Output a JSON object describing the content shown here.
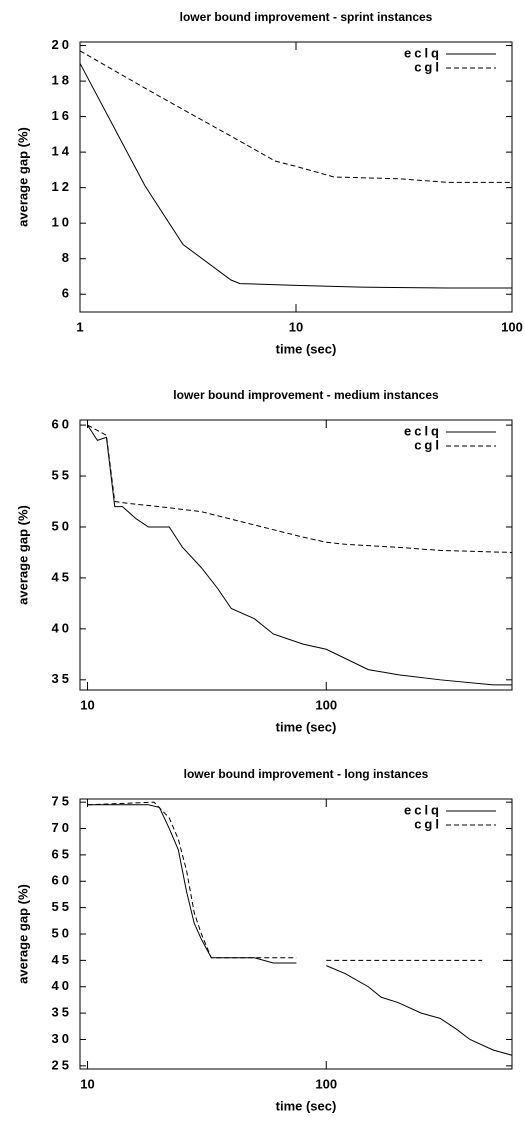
{
  "chart_data": [
    {
      "type": "line",
      "title": "lower bound improvement - sprint instances",
      "xlabel": "time (sec)",
      "ylabel": "average gap (%)",
      "xscale": "log",
      "xlim": [
        1,
        100
      ],
      "xticks": [
        1,
        10,
        100
      ],
      "ylim": [
        5,
        20.2
      ],
      "yticks": [
        6,
        8,
        10,
        12,
        14,
        16,
        18,
        20
      ],
      "legend": "upper right",
      "series": [
        {
          "name": "eclq",
          "color": "#000000",
          "dash": "solid",
          "x": [
            1,
            2,
            3,
            5,
            5.5,
            10,
            20,
            50,
            100
          ],
          "values": [
            19,
            12.1,
            8.8,
            6.8,
            6.6,
            6.5,
            6.4,
            6.35,
            6.35
          ]
        },
        {
          "name": "cgl",
          "color": "#000000",
          "dash": "dashed",
          "x": [
            1,
            2,
            3,
            5,
            8,
            10,
            15,
            30,
            50,
            100
          ],
          "values": [
            19.7,
            17.6,
            16.4,
            14.9,
            13.5,
            13.2,
            12.6,
            12.5,
            12.3,
            12.3
          ]
        }
      ]
    },
    {
      "type": "line",
      "title": "lower bound improvement - medium instances",
      "xlabel": "time (sec)",
      "ylabel": "average gap (%)",
      "xscale": "log",
      "xlim": [
        9.3,
        600
      ],
      "xticks": [
        10,
        100
      ],
      "ylim": [
        34,
        60.5
      ],
      "yticks": [
        35,
        40,
        45,
        50,
        55,
        60
      ],
      "legend": "upper right",
      "series": [
        {
          "name": "eclq",
          "color": "#000000",
          "dash": "solid",
          "x": [
            10,
            11,
            12,
            13,
            14,
            16,
            18,
            22,
            25,
            30,
            35,
            40,
            50,
            60,
            80,
            100,
            150,
            200,
            300,
            500,
            600
          ],
          "values": [
            60,
            58.5,
            58.8,
            52,
            52,
            50.8,
            50,
            50,
            48,
            46,
            44,
            42,
            41,
            39.5,
            38.5,
            38,
            36,
            35.5,
            35,
            34.5,
            34.5
          ]
        },
        {
          "name": "cgl",
          "color": "#000000",
          "dash": "dashed",
          "x": [
            10,
            12,
            13,
            15,
            20,
            30,
            50,
            80,
            100,
            120,
            200,
            300,
            600
          ],
          "values": [
            60,
            59,
            52.5,
            52.3,
            52,
            51.5,
            50.2,
            49,
            48.5,
            48.3,
            48,
            47.7,
            47.5
          ]
        }
      ]
    },
    {
      "type": "line",
      "title": "lower bound improvement - long instances",
      "xlabel": "time (sec)",
      "ylabel": "average gap (%)",
      "xscale": "log",
      "xlim": [
        9.3,
        600
      ],
      "xticks": [
        10,
        100
      ],
      "ylim": [
        24.4,
        75.6
      ],
      "yticks": [
        25,
        30,
        35,
        40,
        45,
        50,
        55,
        60,
        65,
        70,
        75
      ],
      "legend": "upper right",
      "series": [
        {
          "name": "eclq",
          "color": "#000000",
          "dash": "solid",
          "x": [
            10,
            18,
            20,
            22,
            24,
            26,
            28,
            30,
            33,
            50,
            60,
            75,
            90,
            100,
            120,
            150,
            170,
            200,
            250,
            300,
            350,
            400,
            500,
            600
          ],
          "values": [
            74.5,
            74.5,
            74,
            70,
            66,
            58,
            52,
            49,
            45.5,
            45.5,
            44.5,
            44.5,
            null,
            44,
            42.5,
            40,
            38,
            37,
            35,
            34,
            32,
            30,
            28,
            27
          ]
        },
        {
          "name": "cgl",
          "color": "#000000",
          "dash": "dashed",
          "x": [
            10,
            19,
            22,
            24,
            26,
            28,
            30,
            33,
            75,
            90,
            100,
            200,
            450,
            500,
            550,
            600
          ],
          "values": [
            74.5,
            75,
            72,
            68,
            62,
            54,
            50,
            45.5,
            45.5,
            null,
            45,
            45,
            45,
            null,
            45,
            45
          ]
        }
      ]
    }
  ]
}
